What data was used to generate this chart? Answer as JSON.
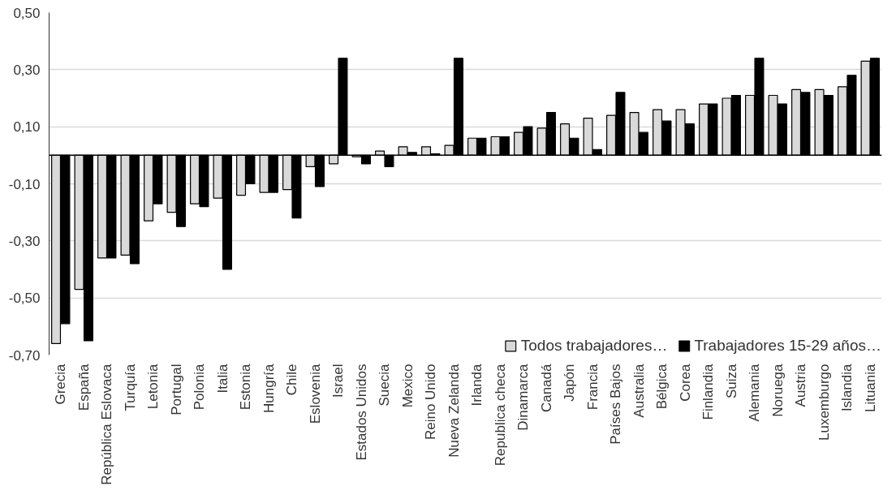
{
  "chart_data": {
    "type": "bar",
    "categories": [
      "Grecia",
      "España",
      "República Eslovaca",
      "Turquía",
      "Letonia",
      "Portugal",
      "Polonia",
      "Italia",
      "Estonia",
      "Hungría",
      "Chile",
      "Eslovenia",
      "Israel",
      "Estados Unidos",
      "Suecia",
      "Mexico",
      "Reino Unido",
      "Nueva Zelanda",
      "Irlanda",
      "Republica checa",
      "Dinamarca",
      "Canadá",
      "Japón",
      "Francia",
      "Países Bajos",
      "Australia",
      "Bélgica",
      "Corea",
      "Finlandia",
      "Suiza",
      "Alemania",
      "Noruega",
      "Austria",
      "Luxemburgo",
      "Islandia",
      "Lituania"
    ],
    "series": [
      {
        "name": "Todos trabajadores…",
        "color": "#d9d9d9",
        "values": [
          -0.66,
          -0.47,
          -0.36,
          -0.35,
          -0.23,
          -0.2,
          -0.17,
          -0.15,
          -0.14,
          -0.13,
          -0.12,
          -0.04,
          -0.03,
          -0.005,
          0.015,
          0.03,
          0.03,
          0.035,
          0.06,
          0.065,
          0.08,
          0.095,
          0.11,
          0.13,
          0.14,
          0.15,
          0.16,
          0.16,
          0.18,
          0.2,
          0.21,
          0.21,
          0.23,
          0.23,
          0.24,
          0.33
        ]
      },
      {
        "name": "Trabajadores 15-29 años…",
        "color": "#000000",
        "values": [
          -0.59,
          -0.65,
          -0.36,
          -0.38,
          -0.17,
          -0.25,
          -0.18,
          -0.4,
          -0.1,
          -0.13,
          -0.22,
          -0.11,
          0.34,
          -0.03,
          -0.04,
          0.01,
          0.005,
          0.34,
          0.06,
          0.065,
          0.1,
          0.15,
          0.06,
          0.02,
          0.22,
          0.08,
          0.12,
          0.11,
          0.18,
          0.21,
          0.34,
          0.18,
          0.22,
          0.21,
          0.28,
          0.34
        ]
      }
    ],
    "ylim": [
      -0.7,
      0.5
    ],
    "yticks": [
      {
        "value": -0.7,
        "label": "-0,70"
      },
      {
        "value": -0.5,
        "label": "-0,50"
      },
      {
        "value": -0.3,
        "label": "-0,30"
      },
      {
        "value": -0.1,
        "label": "-0,10"
      },
      {
        "value": 0.1,
        "label": "0,10"
      },
      {
        "value": 0.3,
        "label": "0,30"
      },
      {
        "value": 0.5,
        "label": "0,50"
      }
    ],
    "grid": "y",
    "legend": "bottom right"
  }
}
